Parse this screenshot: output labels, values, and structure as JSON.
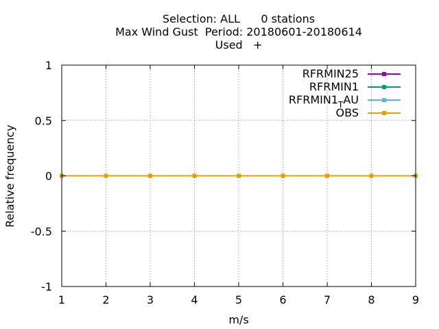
{
  "chart_data": {
    "type": "line",
    "title_lines": [
      "Selection: ALL      0 stations",
      "Max Wind Gust  Period: 20180601-20180614",
      "Used   +"
    ],
    "xlabel": "m/s",
    "ylabel": "Relative frequency",
    "xlim": [
      1,
      9
    ],
    "ylim": [
      -1,
      1
    ],
    "x_ticks": [
      1,
      2,
      3,
      4,
      5,
      6,
      7,
      8,
      9
    ],
    "y_ticks": [
      {
        "value": 1,
        "label": "1"
      },
      {
        "value": 0.5,
        "label": "0.5"
      },
      {
        "value": 0,
        "label": "0"
      },
      {
        "value": -0.5,
        "label": "-0.5"
      },
      {
        "value": -1,
        "label": "-1"
      }
    ],
    "grid": true,
    "legend_position": "top-right",
    "x": [
      1,
      2,
      3,
      4,
      5,
      6,
      7,
      8,
      9
    ],
    "series": [
      {
        "name": "RFRMIN25",
        "color": "#9400d3",
        "values": [
          0,
          0,
          0,
          0,
          0,
          0,
          0,
          0,
          0
        ]
      },
      {
        "name": "RFRMIN1",
        "color": "#009e73",
        "values": [
          0,
          0,
          0,
          0,
          0,
          0,
          0,
          0,
          0
        ]
      },
      {
        "name": "RFRMIN1_T AU",
        "name_main": "RFRMIN1",
        "name_sub": "T",
        "name_rest": "AU",
        "color": "#56b4e9",
        "values": [
          0,
          0,
          0,
          0,
          0,
          0,
          0,
          0,
          0
        ]
      },
      {
        "name": "OBS",
        "color": "#e69f00",
        "values": [
          0,
          0,
          0,
          0,
          0,
          0,
          0,
          0,
          0
        ]
      }
    ]
  }
}
